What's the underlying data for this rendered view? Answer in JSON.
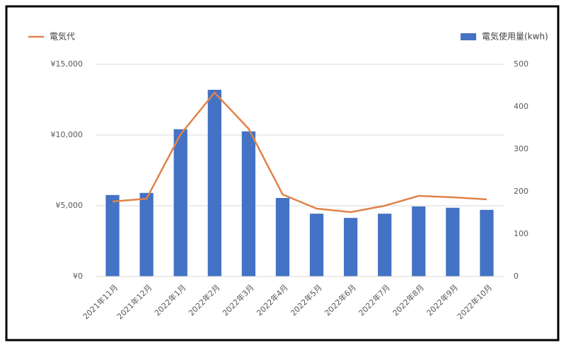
{
  "chart_data": {
    "type": "combo",
    "categories": [
      "2021年11月",
      "2021年12月",
      "2022年1月",
      "2022年2月",
      "2022年3月",
      "2022年4月",
      "2022年5月",
      "2022年6月",
      "2022年7月",
      "2022年8月",
      "2022年9月",
      "2022年10月"
    ],
    "series": [
      {
        "name": "電気代",
        "type": "line",
        "axis": "y",
        "color": "#e0834a",
        "values": [
          5300,
          5500,
          10050,
          13000,
          10450,
          5800,
          4800,
          4550,
          5000,
          5700,
          5600,
          5450
        ]
      },
      {
        "name": "電気使用量(kwh)",
        "type": "bar",
        "axis": "y2",
        "color": "#4472c4",
        "values": [
          192,
          197,
          347,
          440,
          342,
          185,
          148,
          138,
          148,
          165,
          162,
          157
        ]
      }
    ],
    "ylim": [
      0,
      15000
    ],
    "yticks": [
      {
        "value": 0,
        "label": "¥0"
      },
      {
        "value": 5000,
        "label": "¥5,000"
      },
      {
        "value": 10000,
        "label": "¥10,000"
      },
      {
        "value": 15000,
        "label": "¥15,000"
      }
    ],
    "y2lim": [
      0,
      500
    ],
    "y2ticks": [
      0,
      100,
      200,
      300,
      400,
      500
    ],
    "grid": true
  }
}
